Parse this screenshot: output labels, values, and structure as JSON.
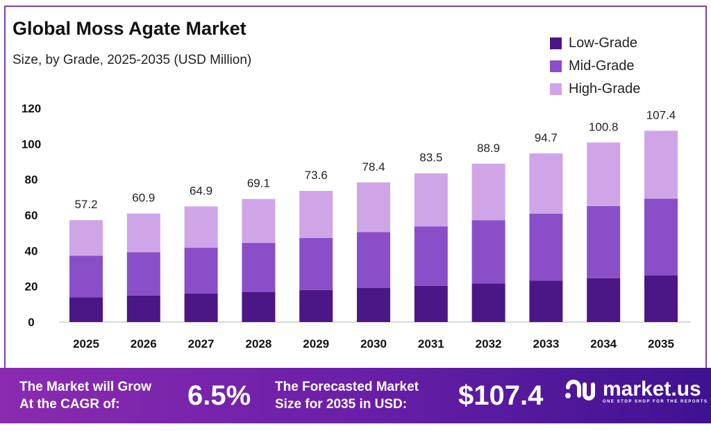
{
  "chart_data": {
    "type": "bar",
    "stacked": true,
    "title": "Global Moss Agate Market",
    "subtitle": "Size, by Grade, 2025-2035 (USD Million)",
    "xlabel": "",
    "ylabel": "",
    "ylim": [
      0,
      120
    ],
    "yticks": [
      "0",
      "20",
      "40",
      "60",
      "80",
      "100",
      "120"
    ],
    "categories": [
      "2025",
      "2026",
      "2027",
      "2028",
      "2029",
      "2030",
      "2031",
      "2032",
      "2033",
      "2034",
      "2035"
    ],
    "totals": [
      "57.2",
      "60.9",
      "64.9",
      "69.1",
      "73.6",
      "78.4",
      "83.5",
      "88.9",
      "94.7",
      "100.8",
      "107.4"
    ],
    "series": [
      {
        "name": "Low-Grade",
        "color": "#4b1685",
        "values": [
          13.9,
          14.9,
          16.0,
          16.9,
          18.0,
          19.1,
          20.3,
          21.7,
          23.2,
          24.6,
          26.1
        ]
      },
      {
        "name": "Mid-Grade",
        "color": "#8a4fc8",
        "values": [
          23.3,
          24.3,
          25.8,
          27.5,
          29.2,
          31.4,
          33.4,
          35.5,
          37.6,
          40.5,
          43.2
        ]
      },
      {
        "name": "High-Grade",
        "color": "#cfa5e8",
        "values": [
          20.0,
          21.7,
          23.1,
          24.7,
          26.4,
          27.9,
          29.8,
          31.7,
          33.9,
          35.7,
          38.1
        ]
      }
    ],
    "legend_position": "top-right",
    "grid": false
  },
  "footer": {
    "cagr_label_1": "The Market will Grow",
    "cagr_label_2": "At the CAGR of:",
    "cagr_value": "6.5%",
    "forecast_label_1": "The Forecasted Market",
    "forecast_label_2": "Size for 2035 in USD:",
    "forecast_value": "$107.4",
    "logo_name": "market.us",
    "logo_tagline": "ONE STOP SHOP FOR THE REPORTS"
  }
}
